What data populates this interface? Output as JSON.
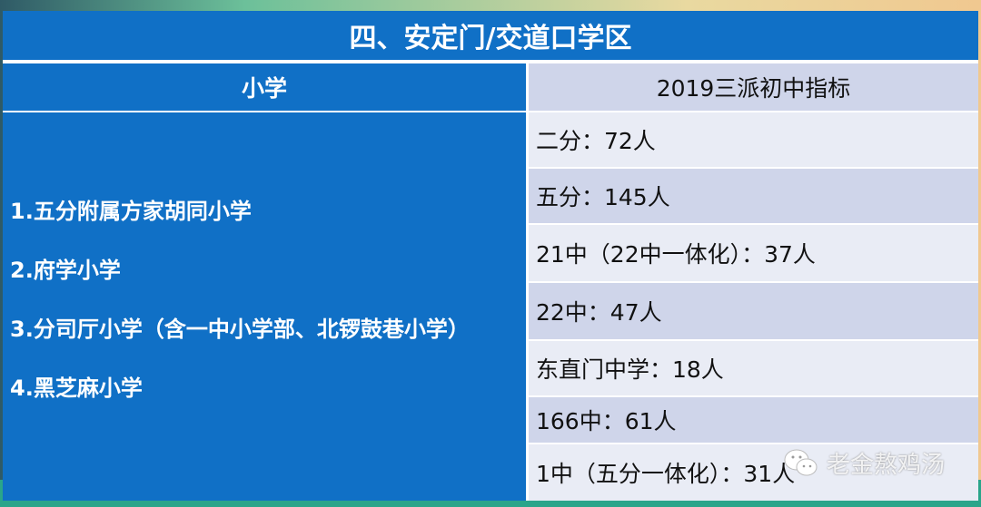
{
  "title": "四、安定门/交道口学区",
  "headers": {
    "left": "小学",
    "right": "2019三派初中指标"
  },
  "schools": [
    "1.五分附属方家胡同小学",
    "2.府学小学",
    "3.分司厅小学（含一中小学部、北锣鼓巷小学）",
    "4.黑芝麻小学"
  ],
  "quotas": [
    "二分：72人",
    "五分：145人",
    "21中（22中一体化）：37人",
    "22中：47人",
    "东直门中学：18人",
    "166中：61人",
    "1中（五分一体化）：31人"
  ],
  "watermark": {
    "text": "老金熬鸡汤",
    "icon": "wechat-icon"
  },
  "colors": {
    "blue": "#1070c6",
    "row_light": "#e9ecf5",
    "row_dark": "#cfd5ea"
  }
}
